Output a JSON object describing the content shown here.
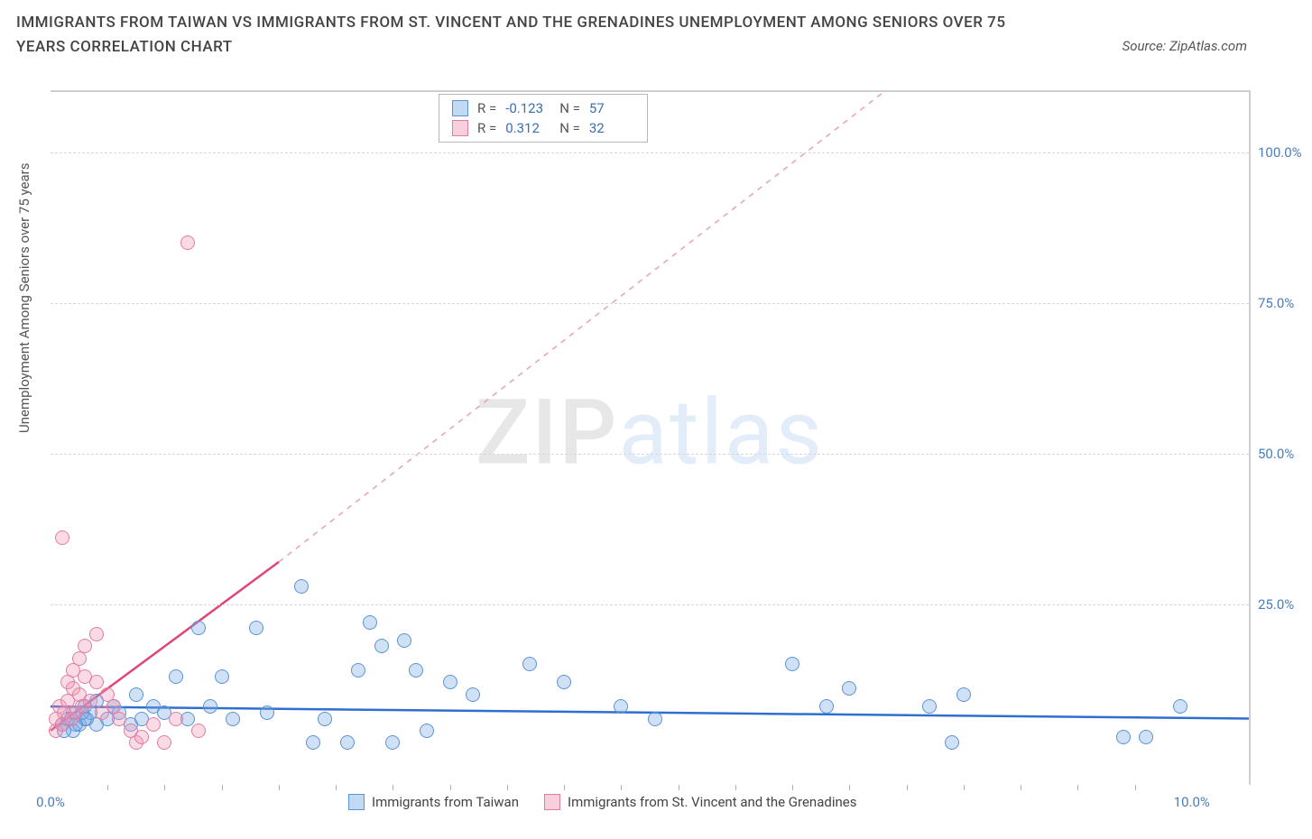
{
  "title": "IMMIGRANTS FROM TAIWAN VS IMMIGRANTS FROM ST. VINCENT AND THE GRENADINES UNEMPLOYMENT AMONG SENIORS OVER 75 YEARS CORRELATION CHART",
  "source_label": "Source: ZipAtlas.com",
  "ylabel": "Unemployment Among Seniors over 75 years",
  "watermark": {
    "a": "ZIP",
    "b": "atlas"
  },
  "chart": {
    "type": "scatter",
    "xlim": [
      0,
      10.5
    ],
    "ylim": [
      -5,
      110
    ],
    "xticks": [
      0.0,
      10.0
    ],
    "xtick_labels": [
      "0.0%",
      "10.0%"
    ],
    "yticks": [
      25.0,
      50.0,
      75.0,
      100.0
    ],
    "ytick_labels": [
      "25.0%",
      "50.0%",
      "75.0%",
      "100.0%"
    ],
    "xtick_minor": [
      0.5,
      1.0,
      1.5,
      2.0,
      2.5,
      3.0,
      3.5,
      4.0,
      4.5,
      5.0,
      5.5,
      6.0,
      6.5,
      7.0,
      7.5,
      8.0,
      8.5,
      9.0,
      9.5
    ],
    "background_color": "#ffffff",
    "grid_color": "#d8d8d8",
    "series": [
      {
        "key": "taiwan",
        "label": "Immigrants from Taiwan",
        "color_fill": "rgba(120,170,230,0.35)",
        "color_stroke": "#5a93d6",
        "marker_radius": 8,
        "r_value": "-0.123",
        "n_value": "57",
        "trend": {
          "x1": 0,
          "y1": 8.0,
          "x2": 10.5,
          "y2": 6.0,
          "dash": "none",
          "stroke": "#2f6fd0",
          "width": 2.5
        },
        "points": [
          [
            0.1,
            5
          ],
          [
            0.15,
            6
          ],
          [
            0.2,
            4
          ],
          [
            0.2,
            7
          ],
          [
            0.25,
            5
          ],
          [
            0.3,
            8
          ],
          [
            0.3,
            6
          ],
          [
            0.35,
            7
          ],
          [
            0.4,
            5
          ],
          [
            0.4,
            9
          ],
          [
            0.5,
            6
          ],
          [
            0.55,
            8
          ],
          [
            0.6,
            7
          ],
          [
            0.7,
            5
          ],
          [
            0.75,
            10
          ],
          [
            0.8,
            6
          ],
          [
            0.9,
            8
          ],
          [
            1.0,
            7
          ],
          [
            1.1,
            13
          ],
          [
            1.2,
            6
          ],
          [
            1.3,
            21
          ],
          [
            1.4,
            8
          ],
          [
            1.5,
            13
          ],
          [
            1.6,
            6
          ],
          [
            1.8,
            21
          ],
          [
            1.9,
            7
          ],
          [
            2.2,
            28
          ],
          [
            2.3,
            2
          ],
          [
            2.4,
            6
          ],
          [
            2.6,
            2
          ],
          [
            2.7,
            14
          ],
          [
            2.8,
            22
          ],
          [
            2.9,
            18
          ],
          [
            3.0,
            2
          ],
          [
            3.1,
            19
          ],
          [
            3.2,
            14
          ],
          [
            3.3,
            4
          ],
          [
            3.5,
            12
          ],
          [
            3.7,
            10
          ],
          [
            4.2,
            15
          ],
          [
            4.5,
            12
          ],
          [
            5.0,
            8
          ],
          [
            5.3,
            6
          ],
          [
            6.5,
            15
          ],
          [
            6.8,
            8
          ],
          [
            7.0,
            11
          ],
          [
            7.7,
            8
          ],
          [
            7.9,
            2
          ],
          [
            8.0,
            10
          ],
          [
            9.4,
            3
          ],
          [
            9.6,
            3
          ],
          [
            9.9,
            8
          ],
          [
            0.12,
            4
          ],
          [
            0.18,
            6
          ],
          [
            0.22,
            5
          ],
          [
            0.28,
            7
          ],
          [
            0.32,
            6
          ]
        ]
      },
      {
        "key": "stvincent",
        "label": "Immigrants from St. Vincent and the Grenadines",
        "color_fill": "rgba(240,150,180,0.35)",
        "color_stroke": "#e07da3",
        "marker_radius": 8,
        "r_value": "0.312",
        "n_value": "32",
        "trend": {
          "x1": 0.0,
          "y1": 4.0,
          "x2": 2.0,
          "y2": 32.0,
          "dash": "none",
          "stroke": "#e0457c",
          "width": 2.5
        },
        "trend_ext": {
          "x1": 2.0,
          "y1": 32.0,
          "x2": 7.3,
          "y2": 110.0,
          "dash": "6,6",
          "stroke": "#e8a0bb",
          "width": 1.5
        },
        "points": [
          [
            0.05,
            4
          ],
          [
            0.05,
            6
          ],
          [
            0.08,
            8
          ],
          [
            0.1,
            5
          ],
          [
            0.1,
            36
          ],
          [
            0.12,
            7
          ],
          [
            0.15,
            9
          ],
          [
            0.15,
            12
          ],
          [
            0.18,
            6
          ],
          [
            0.2,
            11
          ],
          [
            0.2,
            14
          ],
          [
            0.22,
            7
          ],
          [
            0.25,
            10
          ],
          [
            0.25,
            16
          ],
          [
            0.28,
            8
          ],
          [
            0.3,
            13
          ],
          [
            0.3,
            18
          ],
          [
            0.35,
            9
          ],
          [
            0.4,
            12
          ],
          [
            0.4,
            20
          ],
          [
            0.45,
            7
          ],
          [
            0.5,
            10
          ],
          [
            0.55,
            8
          ],
          [
            0.6,
            6
          ],
          [
            0.7,
            4
          ],
          [
            0.75,
            2
          ],
          [
            0.8,
            3
          ],
          [
            0.9,
            5
          ],
          [
            1.0,
            2
          ],
          [
            1.1,
            6
          ],
          [
            1.2,
            85
          ],
          [
            1.3,
            4
          ]
        ]
      }
    ]
  },
  "legend": {
    "taiwan": "Immigrants from Taiwan",
    "stvincent": "Immigrants from St. Vincent and the Grenadines"
  },
  "stats_labels": {
    "r": "R =",
    "n": "N ="
  }
}
